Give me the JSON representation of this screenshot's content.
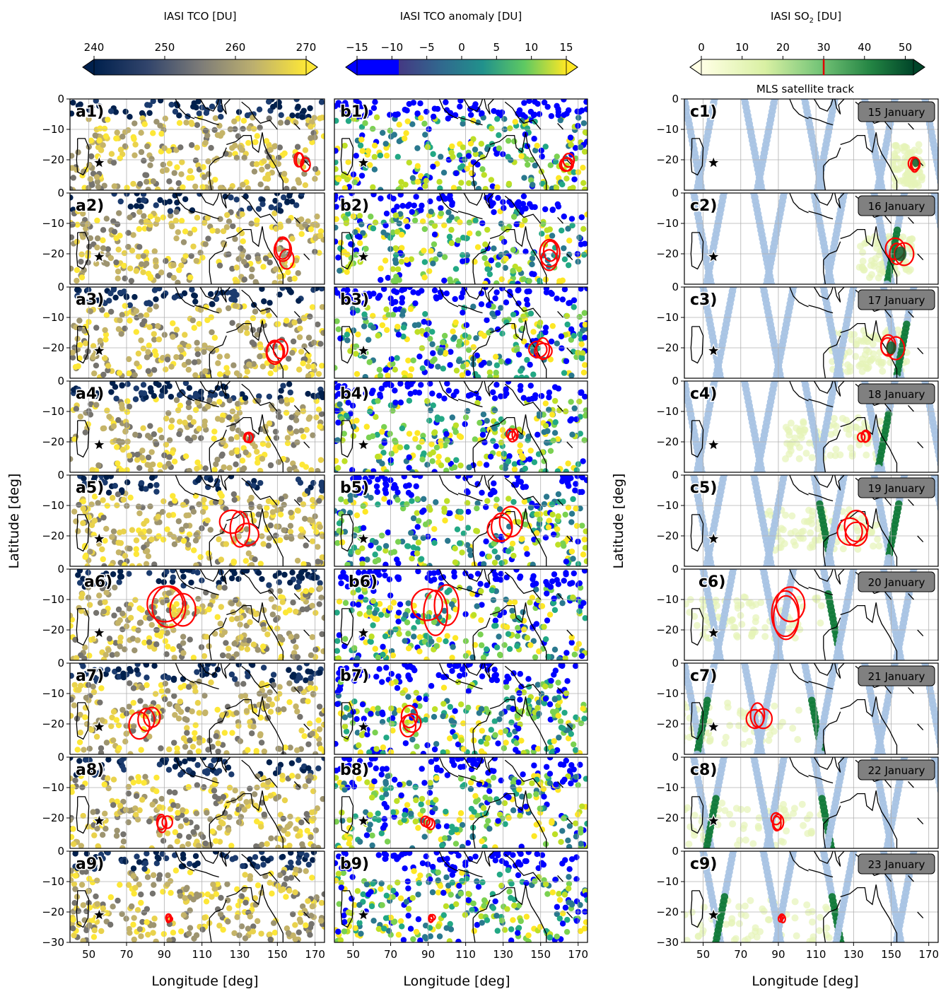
{
  "colorbars": [
    {
      "title": "IASI TCO [DU]",
      "ticks": [
        "240",
        "250",
        "260",
        "270"
      ],
      "tick_values": [
        240,
        250,
        260,
        270
      ],
      "range": [
        240,
        270
      ],
      "colormap": "cividis",
      "extend": "both"
    },
    {
      "title": "IASI TCO anomaly [DU]",
      "ticks": [
        "−15",
        "−10",
        "−5",
        "0",
        "5",
        "10",
        "15"
      ],
      "tick_values": [
        -15,
        -10,
        -5,
        0,
        5,
        10,
        15
      ],
      "range": [
        -15,
        15
      ],
      "colormap": "viridis-with-blue-below--10",
      "extend": "both"
    },
    {
      "title_prefix": "IASI SO",
      "title_sub": "2",
      "title_suffix": " [DU]",
      "ticks": [
        "0",
        "10",
        "20",
        "30",
        "40",
        "50"
      ],
      "tick_values": [
        0,
        10,
        20,
        30,
        40,
        50
      ],
      "range": [
        0,
        52
      ],
      "colormap": "YlGn",
      "extend": "both",
      "threshold_marker": 30,
      "threshold_color": "#e00000"
    }
  ],
  "legend_text": "MLS satellite track",
  "ylabel": "Latitude [deg]",
  "xlabel": "Longitude [deg]",
  "panel_labels": {
    "a": [
      "a1)",
      "a2)",
      "a3)",
      "a4)",
      "a5)",
      "a6)",
      "a7)",
      "a8)",
      "a9)"
    ],
    "b": [
      "b1)",
      "b2)",
      "b3)",
      "b4)",
      "b5)",
      "b6)",
      "b7)",
      "b8)",
      "b9)"
    ],
    "c": [
      "c1)",
      "c2)",
      "c3)",
      "c4)",
      "c5)",
      "c6)",
      "c7)",
      "c8)",
      "c9)"
    ]
  },
  "dates": [
    "15 January",
    "16 January",
    "17 January",
    "18 January",
    "19 January",
    "20 January",
    "21 January",
    "22 January",
    "23 January"
  ],
  "colors": {
    "plume_contour": "#ff0000",
    "mls_track": "#a9c4e4",
    "so2_high": "#127a3a",
    "star": "#000000"
  },
  "chart_data": {
    "type": "heatmap",
    "layout": "9 rows x 3 columns of map panels",
    "columns": [
      "IASI TCO [DU]",
      "IASI TCO anomaly [DU]",
      "IASI SO2 [DU] with MLS satellite track"
    ],
    "x_range": [
      40,
      175
    ],
    "y_range": [
      -30,
      0
    ],
    "x_ticks": [
      50,
      70,
      90,
      110,
      130,
      150,
      170
    ],
    "y_ticks": [
      0,
      -10,
      -20,
      -30
    ],
    "grid": true,
    "marker_star": {
      "lon": 55.5,
      "lat": -21
    },
    "plume_centers_lon_lat": [
      [
        163,
        -21
      ],
      [
        155,
        -20
      ],
      [
        150,
        -20
      ],
      [
        135,
        -18
      ],
      [
        130,
        -17
      ],
      [
        95,
        -15
      ],
      [
        80,
        -19
      ],
      [
        90,
        -21
      ],
      [
        92,
        -22
      ]
    ],
    "plume_radii_deg": [
      4,
      7,
      6,
      3,
      9,
      12,
      7,
      4,
      2
    ]
  }
}
